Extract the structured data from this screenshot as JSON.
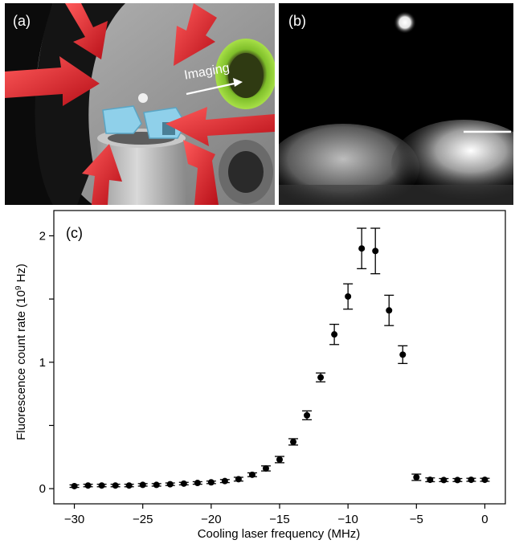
{
  "panels": {
    "a": {
      "label": "(a)",
      "imaging_label": "Imaging"
    },
    "b": {
      "label": "(b)"
    }
  },
  "chart_data": {
    "type": "scatter",
    "panel_label": "(c)",
    "xlabel": "Cooling laser frequency (MHz)",
    "ylabel": "Fluorescence count rate (10",
    "ylabel_sup": "9",
    "ylabel_tail": " Hz)",
    "xlim": [
      -31.5,
      1.5
    ],
    "ylim": [
      -0.12,
      2.2
    ],
    "xticks": [
      -30,
      -25,
      -20,
      -15,
      -10,
      -5,
      0
    ],
    "xtick_labels": [
      "−30",
      "−25",
      "−20",
      "−15",
      "−10",
      "−5",
      "0"
    ],
    "yticks": [
      0,
      0.5,
      1,
      1.5,
      2
    ],
    "ytick_labels": [
      "0",
      "",
      "1",
      "",
      "2"
    ],
    "grid": false,
    "marker_color": "#000000",
    "series": [
      {
        "x": [
          -30,
          -29,
          -28,
          -27,
          -26,
          -25,
          -24,
          -23,
          -22,
          -21,
          -20,
          -19,
          -18,
          -17,
          -16,
          -15,
          -14,
          -13,
          -12,
          -11,
          -10,
          -9,
          -8,
          -7,
          -6,
          -5,
          -4,
          -3,
          -2,
          -1,
          0
        ],
        "y": [
          0.02,
          0.025,
          0.025,
          0.025,
          0.025,
          0.03,
          0.03,
          0.035,
          0.04,
          0.045,
          0.05,
          0.06,
          0.075,
          0.11,
          0.16,
          0.23,
          0.37,
          0.58,
          0.88,
          1.22,
          1.52,
          1.9,
          1.88,
          1.41,
          1.06,
          0.09,
          0.07,
          0.068,
          0.068,
          0.07,
          0.07
        ],
        "err": [
          0.01,
          0.01,
          0.01,
          0.01,
          0.01,
          0.01,
          0.01,
          0.01,
          0.01,
          0.01,
          0.01,
          0.012,
          0.015,
          0.015,
          0.02,
          0.025,
          0.025,
          0.035,
          0.035,
          0.08,
          0.1,
          0.16,
          0.18,
          0.12,
          0.07,
          0.025,
          0.015,
          0.012,
          0.012,
          0.012,
          0.012
        ]
      }
    ]
  }
}
